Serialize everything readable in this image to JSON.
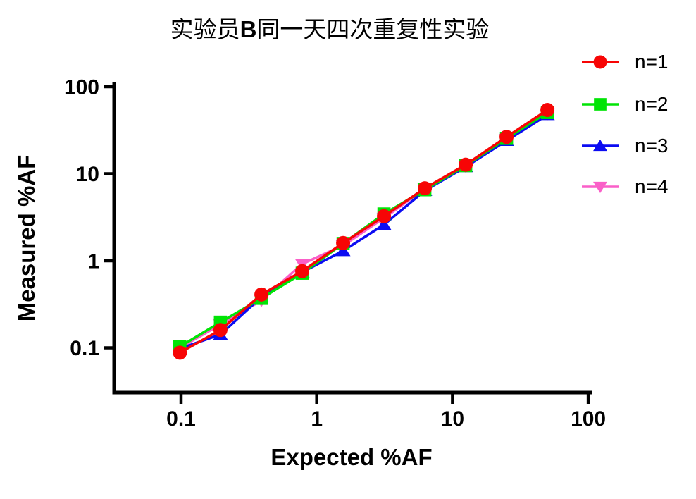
{
  "title": {
    "prefix": "实验员",
    "bold": "B",
    "suffix": "同一天四次重复性实验"
  },
  "chart_data": {
    "type": "line",
    "title": "实验员B同一天四次重复性实验",
    "x_axis": {
      "label": "Expected %AF",
      "scale": "log",
      "tick_values": [
        0.1,
        1,
        10,
        100
      ],
      "tick_labels": [
        "0.1",
        "1",
        "10",
        "100"
      ],
      "range_shown": [
        0.03,
        110
      ]
    },
    "y_axis": {
      "label": "Measured %AF",
      "scale": "log",
      "tick_values": [
        100,
        10,
        1,
        0.1
      ],
      "tick_labels": [
        "100",
        "10",
        "1",
        "0.1"
      ],
      "range_shown": [
        0.03,
        100
      ]
    },
    "x": [
      0.098,
      0.195,
      0.391,
      0.781,
      1.563,
      3.125,
      6.25,
      12.5,
      25,
      50
    ],
    "series": [
      {
        "name": "n=1",
        "color": "#F70505",
        "marker": "circle",
        "values": [
          0.088,
          0.16,
          0.41,
          0.76,
          1.6,
          3.25,
          6.8,
          12.7,
          26.5,
          54
        ]
      },
      {
        "name": "n=2",
        "color": "#00E405",
        "marker": "square",
        "values": [
          0.103,
          0.197,
          0.37,
          0.72,
          1.58,
          3.45,
          6.55,
          12.4,
          25.5,
          50.5
        ]
      },
      {
        "name": "n=3",
        "color": "#0C0CF2",
        "marker": "triangle-up",
        "values": [
          0.098,
          0.142,
          0.385,
          0.74,
          1.3,
          2.6,
          6.4,
          12.0,
          24,
          47.5
        ]
      },
      {
        "name": "n=4",
        "color": "#FA5FC8",
        "marker": "triangle-down",
        "values": [
          0.1,
          0.185,
          0.35,
          0.92,
          1.5,
          3.1,
          6.7,
          12.2,
          25,
          49
        ]
      }
    ],
    "legend_position": "right-top",
    "grid": false
  },
  "colors": {
    "axis": "#000000",
    "text": "#000000",
    "background": "#FFFFFF"
  }
}
